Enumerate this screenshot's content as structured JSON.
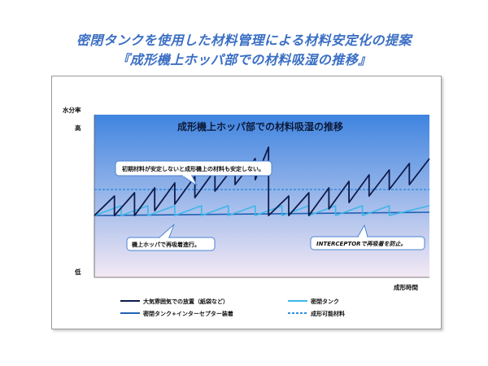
{
  "page": {
    "title_line1": "密閉タンクを使用した材料管理による材料安定化の提案",
    "title_line2": "『成形機上ホッパ部での材料吸湿の推移』"
  },
  "chart_data": {
    "type": "line",
    "title": "成形機上ホッパ部での材料吸湿の推移",
    "ylabel": "水分率",
    "xlabel": "成形時間",
    "y_high_label": "高",
    "y_low_label": "低",
    "ylim": [
      0,
      100
    ],
    "xlim": [
      0,
      100
    ],
    "background_gradient": [
      "#3f84e0",
      "#f4e9f4"
    ],
    "series": [
      {
        "name": "大気雰囲気での放置（紙袋など）",
        "color": "#0d1b4a",
        "style": "solid",
        "points": [
          [
            0,
            38
          ],
          [
            6,
            50
          ],
          [
            6,
            38
          ],
          [
            12,
            52
          ],
          [
            12,
            38
          ],
          [
            18,
            55
          ],
          [
            18,
            41
          ],
          [
            24,
            58
          ],
          [
            24,
            45
          ],
          [
            30,
            62
          ],
          [
            30,
            49
          ],
          [
            36,
            66
          ],
          [
            36,
            53
          ],
          [
            42,
            69
          ],
          [
            42,
            57
          ],
          [
            48,
            73
          ],
          [
            48,
            60
          ],
          [
            52,
            80
          ],
          [
            52,
            38
          ],
          [
            58,
            50
          ],
          [
            58,
            38
          ],
          [
            64,
            52
          ],
          [
            64,
            38
          ],
          [
            70,
            55
          ],
          [
            70,
            42
          ],
          [
            76,
            59
          ],
          [
            76,
            46
          ],
          [
            82,
            63
          ],
          [
            82,
            50
          ],
          [
            88,
            66
          ],
          [
            88,
            54
          ],
          [
            94,
            70
          ],
          [
            94,
            57
          ],
          [
            100,
            73
          ]
        ]
      },
      {
        "name": "密閉タンク",
        "color": "#3fb6ea",
        "style": "solid",
        "points": [
          [
            0,
            38
          ],
          [
            8,
            44
          ],
          [
            8,
            38
          ],
          [
            16,
            44
          ],
          [
            16,
            38
          ],
          [
            24,
            44
          ],
          [
            24,
            38
          ],
          [
            32,
            44
          ],
          [
            32,
            38
          ],
          [
            40,
            44
          ],
          [
            40,
            38
          ],
          [
            48,
            44
          ],
          [
            48,
            38
          ],
          [
            56,
            44
          ],
          [
            56,
            38
          ],
          [
            64,
            44
          ],
          [
            64,
            38
          ],
          [
            72,
            44
          ],
          [
            72,
            38
          ],
          [
            80,
            44
          ],
          [
            80,
            38
          ],
          [
            88,
            44
          ],
          [
            88,
            38
          ],
          [
            100,
            44
          ]
        ]
      },
      {
        "name": "密閉タンク+インターセプター装着",
        "color": "#1f63b5",
        "style": "solid",
        "points": [
          [
            0,
            38
          ],
          [
            100,
            40
          ]
        ]
      },
      {
        "name": "成形可能材料",
        "color": "#2e8fdc",
        "style": "dashed",
        "points": [
          [
            0,
            54
          ],
          [
            100,
            54
          ]
        ]
      }
    ],
    "annotations": [
      "初期材料が安定しないと成形機上の材料も安定しない。",
      "機上ホッパで再吸着進行。",
      "INTERCEPTORで再吸着を防止。"
    ],
    "legend_position": "bottom"
  }
}
